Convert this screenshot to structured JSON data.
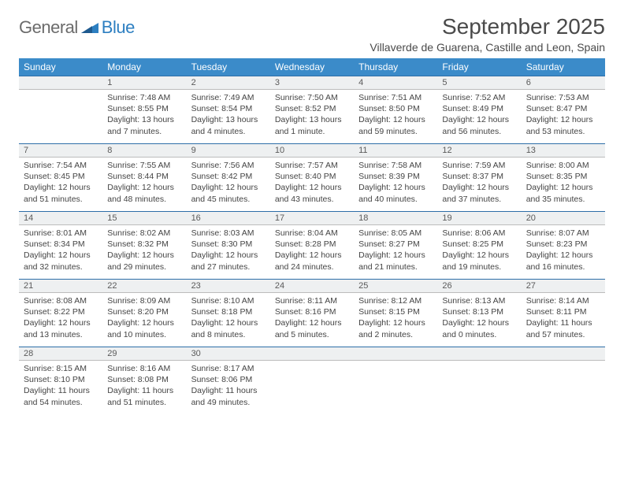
{
  "brand": {
    "part1": "General",
    "part2": "Blue"
  },
  "title": "September 2025",
  "subtitle": "Villaverde de Guarena, Castille and Leon, Spain",
  "colors": {
    "header_bg": "#3b8bc9",
    "header_text": "#ffffff",
    "daynum_stripe_bg": "#eef0f1",
    "daynum_stripe_border_top": "#2d6ea8",
    "daynum_stripe_border_bottom": "#bcbcbc",
    "body_text": "#444444",
    "title_text": "#4a4a4a",
    "logo_gray": "#6b6b6b",
    "logo_blue": "#2d7fc1",
    "page_bg": "#ffffff"
  },
  "typography": {
    "title_fontsize": 28,
    "subtitle_fontsize": 14,
    "dayheader_fontsize": 12,
    "daynum_fontsize": 11,
    "cell_fontsize": 10.5,
    "logo_fontsize": 22
  },
  "day_headers": [
    "Sunday",
    "Monday",
    "Tuesday",
    "Wednesday",
    "Thursday",
    "Friday",
    "Saturday"
  ],
  "weeks": [
    [
      {
        "empty": true
      },
      {
        "n": "1",
        "sr": "Sunrise: 7:48 AM",
        "ss": "Sunset: 8:55 PM",
        "dl": "Daylight: 13 hours and 7 minutes."
      },
      {
        "n": "2",
        "sr": "Sunrise: 7:49 AM",
        "ss": "Sunset: 8:54 PM",
        "dl": "Daylight: 13 hours and 4 minutes."
      },
      {
        "n": "3",
        "sr": "Sunrise: 7:50 AM",
        "ss": "Sunset: 8:52 PM",
        "dl": "Daylight: 13 hours and 1 minute."
      },
      {
        "n": "4",
        "sr": "Sunrise: 7:51 AM",
        "ss": "Sunset: 8:50 PM",
        "dl": "Daylight: 12 hours and 59 minutes."
      },
      {
        "n": "5",
        "sr": "Sunrise: 7:52 AM",
        "ss": "Sunset: 8:49 PM",
        "dl": "Daylight: 12 hours and 56 minutes."
      },
      {
        "n": "6",
        "sr": "Sunrise: 7:53 AM",
        "ss": "Sunset: 8:47 PM",
        "dl": "Daylight: 12 hours and 53 minutes."
      }
    ],
    [
      {
        "n": "7",
        "sr": "Sunrise: 7:54 AM",
        "ss": "Sunset: 8:45 PM",
        "dl": "Daylight: 12 hours and 51 minutes."
      },
      {
        "n": "8",
        "sr": "Sunrise: 7:55 AM",
        "ss": "Sunset: 8:44 PM",
        "dl": "Daylight: 12 hours and 48 minutes."
      },
      {
        "n": "9",
        "sr": "Sunrise: 7:56 AM",
        "ss": "Sunset: 8:42 PM",
        "dl": "Daylight: 12 hours and 45 minutes."
      },
      {
        "n": "10",
        "sr": "Sunrise: 7:57 AM",
        "ss": "Sunset: 8:40 PM",
        "dl": "Daylight: 12 hours and 43 minutes."
      },
      {
        "n": "11",
        "sr": "Sunrise: 7:58 AM",
        "ss": "Sunset: 8:39 PM",
        "dl": "Daylight: 12 hours and 40 minutes."
      },
      {
        "n": "12",
        "sr": "Sunrise: 7:59 AM",
        "ss": "Sunset: 8:37 PM",
        "dl": "Daylight: 12 hours and 37 minutes."
      },
      {
        "n": "13",
        "sr": "Sunrise: 8:00 AM",
        "ss": "Sunset: 8:35 PM",
        "dl": "Daylight: 12 hours and 35 minutes."
      }
    ],
    [
      {
        "n": "14",
        "sr": "Sunrise: 8:01 AM",
        "ss": "Sunset: 8:34 PM",
        "dl": "Daylight: 12 hours and 32 minutes."
      },
      {
        "n": "15",
        "sr": "Sunrise: 8:02 AM",
        "ss": "Sunset: 8:32 PM",
        "dl": "Daylight: 12 hours and 29 minutes."
      },
      {
        "n": "16",
        "sr": "Sunrise: 8:03 AM",
        "ss": "Sunset: 8:30 PM",
        "dl": "Daylight: 12 hours and 27 minutes."
      },
      {
        "n": "17",
        "sr": "Sunrise: 8:04 AM",
        "ss": "Sunset: 8:28 PM",
        "dl": "Daylight: 12 hours and 24 minutes."
      },
      {
        "n": "18",
        "sr": "Sunrise: 8:05 AM",
        "ss": "Sunset: 8:27 PM",
        "dl": "Daylight: 12 hours and 21 minutes."
      },
      {
        "n": "19",
        "sr": "Sunrise: 8:06 AM",
        "ss": "Sunset: 8:25 PM",
        "dl": "Daylight: 12 hours and 19 minutes."
      },
      {
        "n": "20",
        "sr": "Sunrise: 8:07 AM",
        "ss": "Sunset: 8:23 PM",
        "dl": "Daylight: 12 hours and 16 minutes."
      }
    ],
    [
      {
        "n": "21",
        "sr": "Sunrise: 8:08 AM",
        "ss": "Sunset: 8:22 PM",
        "dl": "Daylight: 12 hours and 13 minutes."
      },
      {
        "n": "22",
        "sr": "Sunrise: 8:09 AM",
        "ss": "Sunset: 8:20 PM",
        "dl": "Daylight: 12 hours and 10 minutes."
      },
      {
        "n": "23",
        "sr": "Sunrise: 8:10 AM",
        "ss": "Sunset: 8:18 PM",
        "dl": "Daylight: 12 hours and 8 minutes."
      },
      {
        "n": "24",
        "sr": "Sunrise: 8:11 AM",
        "ss": "Sunset: 8:16 PM",
        "dl": "Daylight: 12 hours and 5 minutes."
      },
      {
        "n": "25",
        "sr": "Sunrise: 8:12 AM",
        "ss": "Sunset: 8:15 PM",
        "dl": "Daylight: 12 hours and 2 minutes."
      },
      {
        "n": "26",
        "sr": "Sunrise: 8:13 AM",
        "ss": "Sunset: 8:13 PM",
        "dl": "Daylight: 12 hours and 0 minutes."
      },
      {
        "n": "27",
        "sr": "Sunrise: 8:14 AM",
        "ss": "Sunset: 8:11 PM",
        "dl": "Daylight: 11 hours and 57 minutes."
      }
    ],
    [
      {
        "n": "28",
        "sr": "Sunrise: 8:15 AM",
        "ss": "Sunset: 8:10 PM",
        "dl": "Daylight: 11 hours and 54 minutes."
      },
      {
        "n": "29",
        "sr": "Sunrise: 8:16 AM",
        "ss": "Sunset: 8:08 PM",
        "dl": "Daylight: 11 hours and 51 minutes."
      },
      {
        "n": "30",
        "sr": "Sunrise: 8:17 AM",
        "ss": "Sunset: 8:06 PM",
        "dl": "Daylight: 11 hours and 49 minutes."
      },
      {
        "empty": true
      },
      {
        "empty": true
      },
      {
        "empty": true
      },
      {
        "empty": true
      }
    ]
  ]
}
